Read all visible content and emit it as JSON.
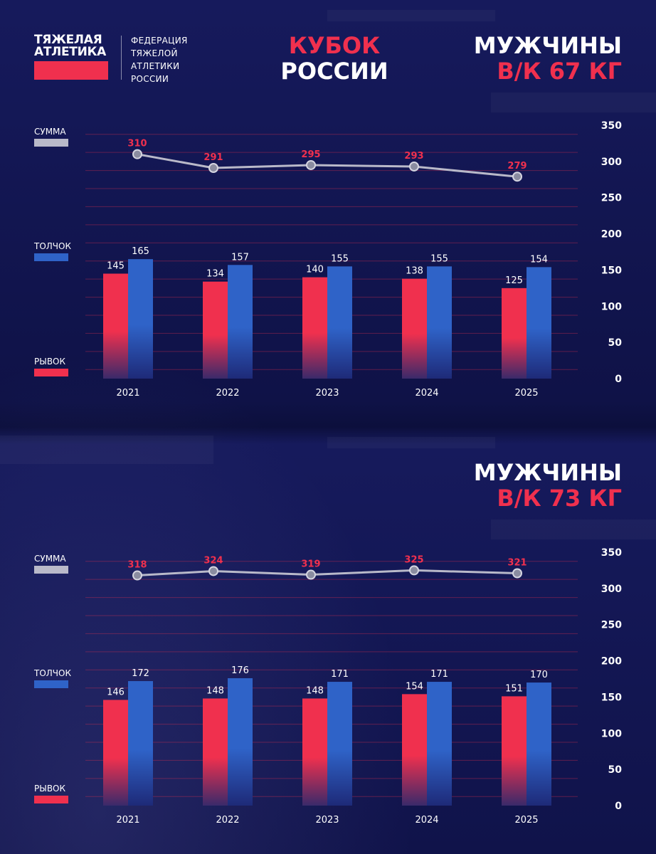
{
  "header": {
    "logo_line1": "ТЯЖЕЛАЯ",
    "logo_line2": "АТЛЕТИКА",
    "federation_lines": [
      "ФЕДЕРАЦИЯ",
      "ТЯЖЕЛОЙ",
      "АТЛЕТИКИ",
      "РОССИИ"
    ],
    "event_line1": "КУБОК",
    "event_line2": "РОССИИ"
  },
  "colors": {
    "snatch": "#f0304e",
    "clean_jerk": "#2f63c8",
    "total": "#b9b9c9",
    "accent": "#f0304e"
  },
  "chart_data": [
    {
      "type": "bar",
      "title_line1": "МУЖЧИНЫ",
      "title_line2": "В/К 67 КГ",
      "categories": [
        "2021",
        "2022",
        "2023",
        "2024",
        "2025"
      ],
      "series": [
        {
          "name": "РЫВОК",
          "values": [
            145,
            134,
            140,
            138,
            125
          ]
        },
        {
          "name": "ТОЛЧОК",
          "values": [
            165,
            157,
            155,
            155,
            154
          ]
        }
      ],
      "total": {
        "name": "СУММА",
        "values": [
          310,
          291,
          295,
          293,
          279
        ]
      },
      "y_ticks": [
        0,
        50,
        100,
        150,
        200,
        250,
        300,
        350
      ],
      "ylim": [
        0,
        350
      ]
    },
    {
      "type": "bar",
      "title_line1": "МУЖЧИНЫ",
      "title_line2": "В/К 73 КГ",
      "categories": [
        "2021",
        "2022",
        "2023",
        "2024",
        "2025"
      ],
      "series": [
        {
          "name": "РЫВОК",
          "values": [
            146,
            148,
            148,
            154,
            151
          ]
        },
        {
          "name": "ТОЛЧОК",
          "values": [
            172,
            176,
            171,
            171,
            170
          ]
        }
      ],
      "total": {
        "name": "СУММА",
        "values": [
          318,
          324,
          319,
          325,
          321
        ]
      },
      "y_ticks": [
        0,
        50,
        100,
        150,
        200,
        250,
        300,
        350
      ],
      "ylim": [
        0,
        350
      ]
    }
  ]
}
